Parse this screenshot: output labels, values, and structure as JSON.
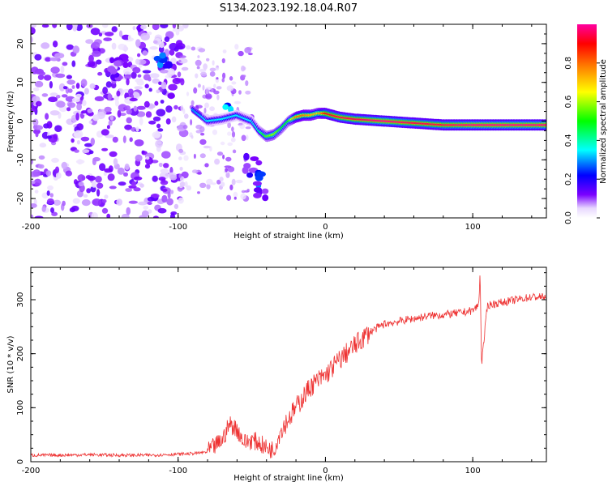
{
  "title": "S134.2023.192.18.04.R07",
  "chart_data": [
    {
      "type": "heatmap",
      "xlabel": "Height of straight line (km)",
      "ylabel": "Frequency (Hz)",
      "xlim": [
        -200,
        150
      ],
      "ylim": [
        -25,
        25
      ],
      "x_ticks": [
        -200,
        -100,
        0,
        100
      ],
      "y_ticks": [
        -20,
        -10,
        0,
        10,
        20
      ],
      "colorbar": {
        "label": "Normalized spectral amplitude",
        "range": [
          0,
          1
        ],
        "ticks": [
          0.0,
          0.2,
          0.4,
          0.6,
          0.8
        ],
        "colormap": [
          "#ffffff",
          "#7a00ff",
          "#0000ff",
          "#00ffff",
          "#00ff00",
          "#ffff00",
          "#ff8000",
          "#ff0000",
          "#ff00a0"
        ]
      },
      "ridge": {
        "x": [
          -90,
          -80,
          -70,
          -60,
          -50,
          -45,
          -40,
          -35,
          -30,
          -25,
          -20,
          -15,
          -10,
          -5,
          0,
          10,
          20,
          40,
          60,
          80,
          100,
          120,
          150
        ],
        "frequency": [
          3,
          0,
          0.5,
          1.5,
          0,
          -2.5,
          -4,
          -3.5,
          -2,
          0,
          1,
          1.5,
          1.5,
          2,
          2,
          1,
          0.5,
          0,
          -0.5,
          -1,
          -1,
          -1,
          -1
        ],
        "amplitude": [
          0.3,
          0.35,
          0.35,
          0.35,
          0.35,
          0.4,
          0.55,
          0.6,
          0.5,
          0.5,
          0.8,
          0.8,
          0.75,
          0.7,
          0.9,
          0.95,
          0.95,
          1,
          0.95,
          0.95,
          1,
          1,
          1
        ]
      },
      "clusters": [
        {
          "x": -110,
          "frequency": 15,
          "amplitude": 0.3
        },
        {
          "x": -140,
          "frequency": 15,
          "amplitude": 0.15
        },
        {
          "x": -145,
          "frequency": 12,
          "amplitude": 0.15
        },
        {
          "x": -65,
          "frequency": 2,
          "amplitude": 0.35
        },
        {
          "x": -50,
          "frequency": -11,
          "amplitude": 0.15
        },
        {
          "x": -47,
          "frequency": -15,
          "amplitude": 0.3
        },
        {
          "x": -45,
          "frequency": -18,
          "amplitude": 0.15
        }
      ]
    },
    {
      "type": "line",
      "xlabel": "Height of straight line (km)",
      "ylabel": "SNR (10 * v/v)",
      "xlim": [
        -200,
        150
      ],
      "ylim": [
        0,
        360
      ],
      "x_ticks": [
        -200,
        -100,
        0,
        100
      ],
      "y_ticks": [
        0,
        100,
        200,
        300
      ],
      "color": "#ee3333",
      "series": [
        {
          "x": [
            -200,
            -180,
            -160,
            -140,
            -120,
            -100,
            -90,
            -80,
            -70,
            -65,
            -60,
            -55,
            -50,
            -45,
            -40,
            -35,
            -30,
            -25,
            -20,
            -15,
            -10,
            -5,
            0,
            5,
            10,
            20,
            30,
            40,
            50,
            60,
            70,
            80,
            90,
            100,
            104,
            105,
            106,
            110,
            120,
            130,
            140,
            150
          ],
          "y": [
            12,
            12,
            13,
            12,
            12,
            14,
            15,
            18,
            40,
            70,
            60,
            35,
            40,
            35,
            25,
            22,
            60,
            80,
            100,
            120,
            140,
            150,
            160,
            175,
            190,
            215,
            240,
            255,
            260,
            265,
            270,
            272,
            275,
            280,
            290,
            350,
            180,
            290,
            295,
            300,
            305,
            305
          ]
        }
      ]
    }
  ]
}
